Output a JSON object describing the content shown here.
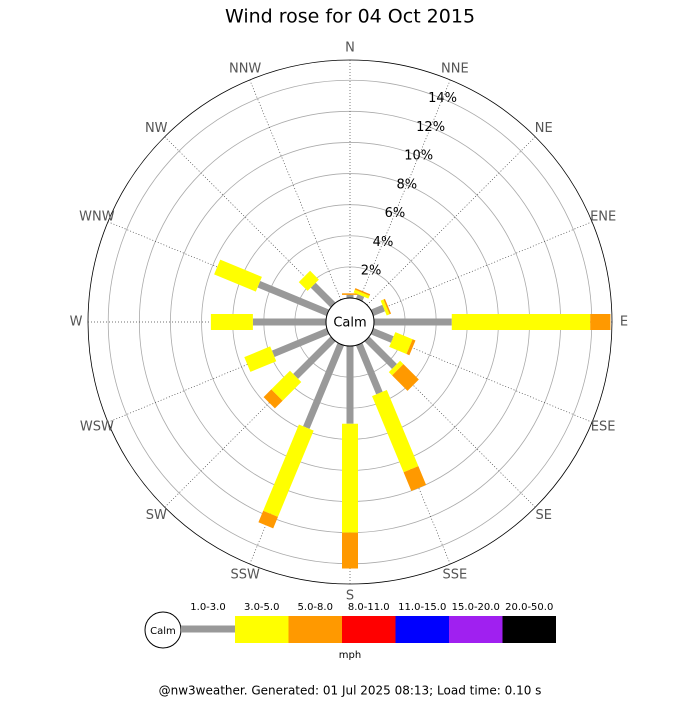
{
  "chart_data": {
    "type": "windrose",
    "title": "Wind rose for 04 Oct 2015",
    "directions": [
      "N",
      "NNE",
      "NE",
      "ENE",
      "E",
      "ESE",
      "SE",
      "SSE",
      "S",
      "SSW",
      "SW",
      "WSW",
      "W",
      "WNW",
      "NW",
      "NNW"
    ],
    "rlim": [
      0,
      15.3
    ],
    "rticks": [
      {
        "value": 2,
        "label": "2%"
      },
      {
        "value": 4,
        "label": "4%"
      },
      {
        "value": 6,
        "label": "6%"
      },
      {
        "value": 8,
        "label": "8%"
      },
      {
        "value": 10,
        "label": "10%"
      },
      {
        "value": 12,
        "label": "12%"
      },
      {
        "value": 14,
        "label": "14%"
      }
    ],
    "calm_label": "Calm",
    "series": [
      {
        "name": "1.0-3.0",
        "color": "#999999",
        "values": [
          0.2,
          0.3,
          0,
          0.8,
          5.0,
          1.4,
          2.5,
          3.4,
          5.0,
          5.8,
          3.4,
          3.8,
          4.7,
          4.8,
          1.8,
          0
        ]
      },
      {
        "name": "3.0-5.0",
        "color": "#ffff00",
        "values": [
          0,
          0.2,
          0,
          0.2,
          8.9,
          1.2,
          0.3,
          5.3,
          7.0,
          6.0,
          1.7,
          1.8,
          2.7,
          2.9,
          0.8,
          0
        ]
      },
      {
        "name": "5.0-8.0",
        "color": "#ff9900",
        "values": [
          0.1,
          0.1,
          0,
          0.1,
          1.3,
          0.2,
          1.4,
          1.3,
          2.3,
          0.8,
          0.7,
          0,
          0,
          0,
          0,
          0
        ]
      },
      {
        "name": "8.0-11.0",
        "color": "#ff0000",
        "values": [
          0,
          0,
          0,
          0,
          0,
          0,
          0,
          0,
          0,
          0,
          0,
          0,
          0,
          0,
          0,
          0
        ]
      },
      {
        "name": "11.0-15.0",
        "color": "#0000ff",
        "values": [
          0,
          0,
          0,
          0,
          0,
          0,
          0,
          0,
          0,
          0,
          0,
          0,
          0,
          0,
          0,
          0
        ]
      },
      {
        "name": "15.0-20.0",
        "color": "#a020f0",
        "values": [
          0,
          0,
          0,
          0,
          0,
          0,
          0,
          0,
          0,
          0,
          0,
          0,
          0,
          0,
          0,
          0
        ]
      },
      {
        "name": "20.0-50.0",
        "color": "#000000",
        "values": [
          0,
          0,
          0,
          0,
          0,
          0,
          0,
          0,
          0,
          0,
          0,
          0,
          0,
          0,
          0,
          0
        ]
      }
    ],
    "unit_label": "mph",
    "footer": "@nw3weather. Generated: 01 Jul 2025 08:13; Load time: 0.10 s"
  }
}
